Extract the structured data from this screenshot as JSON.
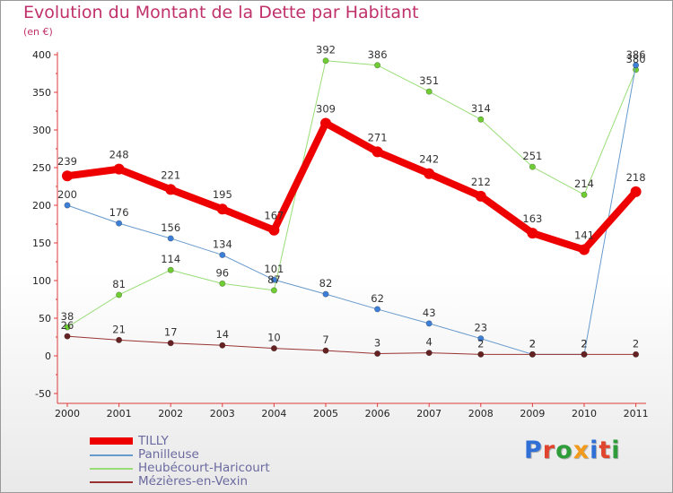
{
  "title": "Evolution du Montant de la Dette par Habitant",
  "subtitle": "(en €)",
  "logo": {
    "text": "Proxiti",
    "letter_colors": [
      "#2f6fd6",
      "#e0442c",
      "#2f9c3a",
      "#f29a1c",
      "#2f6fd6",
      "#e0442c",
      "#2f9c3a"
    ]
  },
  "chart_data": {
    "type": "line",
    "x": [
      "2000",
      "2001",
      "2002",
      "2003",
      "2004",
      "2005",
      "2006",
      "2007",
      "2008",
      "2009",
      "2010",
      "2011"
    ],
    "ylim": [
      -50,
      400
    ],
    "yticks": [
      -50,
      0,
      50,
      100,
      150,
      200,
      250,
      300,
      350,
      400
    ],
    "grid": false,
    "legend_position": "bottom-left",
    "series": [
      {
        "name": "TILLY",
        "color": "#ee0000",
        "line_width": 8,
        "marker_color": "#ee0000",
        "values": [
          239,
          248,
          221,
          195,
          167,
          309,
          271,
          242,
          212,
          163,
          141,
          218
        ],
        "labels": [
          "239",
          "248",
          "221",
          "195",
          "167",
          "309",
          "271",
          "242",
          "212",
          "163",
          "141",
          "218"
        ]
      },
      {
        "name": "Panilleuse",
        "color": "#6699cc",
        "line_width": 1,
        "marker_color": "#3d7fd6",
        "values": [
          200,
          176,
          156,
          134,
          101,
          82,
          62,
          43,
          23,
          2,
          2,
          386
        ],
        "labels": [
          "200",
          "176",
          "156",
          "134",
          "101",
          "82",
          "62",
          "43",
          "23",
          "2",
          "2",
          "386"
        ]
      },
      {
        "name": "Heubécourt-Haricourt",
        "color": "#99dd77",
        "line_width": 1,
        "marker_color": "#6fcc33",
        "values": [
          38,
          81,
          114,
          96,
          87,
          392,
          386,
          351,
          314,
          251,
          214,
          380
        ],
        "labels": [
          "38",
          "81",
          "114",
          "96",
          "87",
          "392",
          "386",
          "351",
          "314",
          "251",
          "214",
          "380"
        ]
      },
      {
        "name": "Mézières-en-Vexin",
        "color": "#993333",
        "line_width": 1,
        "marker_color": "#662222",
        "values": [
          26,
          21,
          17,
          14,
          10,
          7,
          3,
          4,
          2,
          2,
          2,
          2
        ],
        "labels": [
          "26",
          "21",
          "17",
          "14",
          "10",
          "7",
          "3",
          "4",
          "2",
          "2",
          "2",
          "2"
        ]
      }
    ]
  }
}
